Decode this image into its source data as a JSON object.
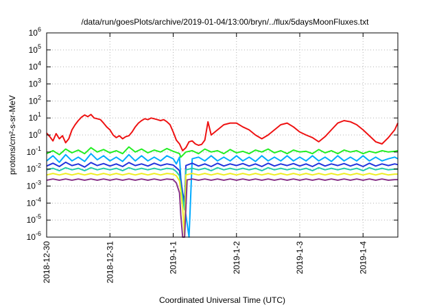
{
  "chart_data": {
    "type": "line",
    "title": "/data/run/goesPlots/archive/2019-01-04/13:00/bryn/../flux/5daysMoonFluxes.txt",
    "xlabel": "Coordinated Universal Time (UTC)",
    "ylabel": "protons/cm²-s-sr-MeV",
    "yscale": "log",
    "xlim": [
      0,
      5.55
    ],
    "ylim": [
      1e-06,
      1000000.0
    ],
    "grid": true,
    "x_ticks": [
      {
        "x": 0,
        "label": "2018-12-30"
      },
      {
        "x": 1,
        "label": "2018-12-31"
      },
      {
        "x": 2,
        "label": "2019-1-1"
      },
      {
        "x": 3,
        "label": "2019-1-2"
      },
      {
        "x": 4,
        "label": "2019-1-3"
      },
      {
        "x": 5,
        "label": "2019-1-4"
      }
    ],
    "y_ticks": [
      {
        "exp": -6,
        "label": "10",
        "sup": "-6"
      },
      {
        "exp": -5,
        "label": "10",
        "sup": "-5"
      },
      {
        "exp": -4,
        "label": "10",
        "sup": "-4"
      },
      {
        "exp": -3,
        "label": "10",
        "sup": "-3"
      },
      {
        "exp": -2,
        "label": "10",
        "sup": "-2"
      },
      {
        "exp": -1,
        "label": "10",
        "sup": "-1"
      },
      {
        "exp": 0,
        "label": "10",
        "sup": "0"
      },
      {
        "exp": 1,
        "label": "10",
        "sup": "1"
      },
      {
        "exp": 2,
        "label": "10",
        "sup": "2"
      },
      {
        "exp": 3,
        "label": "10",
        "sup": "3"
      },
      {
        "exp": 4,
        "label": "10",
        "sup": "4"
      },
      {
        "exp": 5,
        "label": "10",
        "sup": "5"
      },
      {
        "exp": 6,
        "label": "10",
        "sup": "6"
      }
    ],
    "series": [
      {
        "color": "#ee1111",
        "x": [
          0,
          0.05,
          0.1,
          0.15,
          0.2,
          0.25,
          0.3,
          0.35,
          0.4,
          0.45,
          0.5,
          0.55,
          0.6,
          0.65,
          0.7,
          0.75,
          0.8,
          0.85,
          0.9,
          0.95,
          1.0,
          1.05,
          1.1,
          1.15,
          1.2,
          1.25,
          1.3,
          1.35,
          1.4,
          1.45,
          1.5,
          1.55,
          1.6,
          1.65,
          1.7,
          1.75,
          1.8,
          1.85,
          1.9,
          1.95,
          2.0,
          2.05,
          2.1,
          2.15,
          2.2,
          2.25,
          2.3,
          2.35,
          2.4,
          2.45,
          2.5,
          2.55,
          2.6,
          2.7,
          2.8,
          2.9,
          3.0,
          3.1,
          3.2,
          3.3,
          3.4,
          3.5,
          3.6,
          3.7,
          3.8,
          3.9,
          4.0,
          4.1,
          4.2,
          4.3,
          4.4,
          4.5,
          4.6,
          4.7,
          4.8,
          4.9,
          5.0,
          5.1,
          5.2,
          5.3,
          5.4,
          5.5,
          5.55
        ],
        "y": [
          1.3,
          0.8,
          0.45,
          1.2,
          0.6,
          0.9,
          0.35,
          0.6,
          2.0,
          4.0,
          7.0,
          11.0,
          15.0,
          12.0,
          16.0,
          10.0,
          9.0,
          8.0,
          5.0,
          3.0,
          2.0,
          1.0,
          0.7,
          0.9,
          0.6,
          0.8,
          0.9,
          1.5,
          3.0,
          5.0,
          7.0,
          9.0,
          8.0,
          10.0,
          9.0,
          8.0,
          7.0,
          8.0,
          6.0,
          4.0,
          1.5,
          0.5,
          0.3,
          0.12,
          0.18,
          0.4,
          0.45,
          0.3,
          0.25,
          0.28,
          0.5,
          6.0,
          1.0,
          2.0,
          4.0,
          5.0,
          5.0,
          3.0,
          2.0,
          1.0,
          0.6,
          1.0,
          2.0,
          4.0,
          5.0,
          3.0,
          1.5,
          1.0,
          0.7,
          0.4,
          0.8,
          2.0,
          5.0,
          7.0,
          6.0,
          4.0,
          2.0,
          0.9,
          0.4,
          0.3,
          0.7,
          2.0,
          5.0
        ]
      },
      {
        "color": "#22ee22",
        "x": [
          0,
          0.1,
          0.2,
          0.3,
          0.4,
          0.5,
          0.6,
          0.7,
          0.8,
          0.9,
          1.0,
          1.1,
          1.2,
          1.3,
          1.4,
          1.5,
          1.6,
          1.7,
          1.8,
          1.9,
          2.0,
          2.1,
          2.12,
          2.2,
          2.3,
          2.4,
          2.5,
          2.6,
          2.7,
          2.8,
          2.9,
          3.0,
          3.1,
          3.2,
          3.3,
          3.4,
          3.5,
          3.6,
          3.7,
          3.8,
          3.9,
          4.0,
          4.1,
          4.2,
          4.3,
          4.4,
          4.5,
          4.6,
          4.7,
          4.8,
          4.9,
          5.0,
          5.1,
          5.2,
          5.3,
          5.4,
          5.5,
          5.55
        ],
        "y": [
          0.08,
          0.12,
          0.07,
          0.15,
          0.09,
          0.13,
          0.08,
          0.18,
          0.1,
          0.14,
          0.09,
          0.12,
          0.08,
          0.2,
          0.1,
          0.15,
          0.09,
          0.13,
          0.1,
          0.16,
          0.11,
          0.08,
          0.05,
          0.1,
          0.12,
          0.08,
          0.15,
          0.1,
          0.12,
          0.08,
          0.14,
          0.09,
          0.11,
          0.08,
          0.13,
          0.1,
          0.15,
          0.09,
          0.12,
          0.08,
          0.13,
          0.1,
          0.11,
          0.08,
          0.14,
          0.09,
          0.12,
          0.08,
          0.13,
          0.1,
          0.12,
          0.08,
          0.11,
          0.09,
          0.12,
          0.1,
          0.11,
          0.12
        ]
      },
      {
        "color": "#00aaff",
        "x": [
          0,
          0.1,
          0.2,
          0.3,
          0.4,
          0.5,
          0.6,
          0.7,
          0.8,
          0.9,
          1.0,
          1.1,
          1.2,
          1.3,
          1.4,
          1.5,
          1.6,
          1.7,
          1.8,
          1.9,
          2.0,
          2.05,
          2.1,
          2.12,
          2.15,
          2.2,
          2.25,
          2.3,
          2.4,
          2.5,
          2.6,
          2.7,
          2.8,
          2.9,
          3.0,
          3.1,
          3.2,
          3.3,
          3.4,
          3.5,
          3.6,
          3.7,
          3.8,
          3.9,
          4.0,
          4.1,
          4.2,
          4.3,
          4.4,
          4.5,
          4.6,
          4.7,
          4.8,
          4.9,
          5.0,
          5.1,
          5.2,
          5.3,
          5.4,
          5.5,
          5.55
        ],
        "y": [
          0.03,
          0.06,
          0.025,
          0.07,
          0.03,
          0.05,
          0.028,
          0.08,
          0.035,
          0.06,
          0.03,
          0.05,
          0.028,
          0.07,
          0.03,
          0.06,
          0.03,
          0.05,
          0.03,
          0.06,
          0.04,
          0.02,
          0.05,
          0.003,
          0.0003,
          2e-05,
          1e-06,
          0.04,
          0.05,
          0.03,
          0.06,
          0.03,
          0.05,
          0.03,
          0.06,
          0.03,
          0.05,
          0.028,
          0.06,
          0.03,
          0.05,
          0.03,
          0.06,
          0.03,
          0.05,
          0.03,
          0.06,
          0.03,
          0.05,
          0.028,
          0.06,
          0.03,
          0.05,
          0.03,
          0.06,
          0.03,
          0.05,
          0.03,
          0.04,
          0.05,
          0.04
        ]
      },
      {
        "color": "#2233dd",
        "x": [
          0,
          0.1,
          0.2,
          0.3,
          0.4,
          0.5,
          0.6,
          0.7,
          0.8,
          0.9,
          1.0,
          1.1,
          1.2,
          1.3,
          1.4,
          1.5,
          1.6,
          1.7,
          1.8,
          1.9,
          2.0,
          2.05,
          2.1,
          2.12,
          2.15,
          2.18,
          2.2,
          2.3,
          2.4,
          2.5,
          2.6,
          2.7,
          2.8,
          2.9,
          3.0,
          3.1,
          3.2,
          3.3,
          3.4,
          3.5,
          3.6,
          3.7,
          3.8,
          3.9,
          4.0,
          4.1,
          4.2,
          4.3,
          4.4,
          4.5,
          4.6,
          4.7,
          4.8,
          4.9,
          5.0,
          5.1,
          5.2,
          5.3,
          5.4,
          5.5,
          5.55
        ],
        "y": [
          0.015,
          0.022,
          0.014,
          0.025,
          0.016,
          0.02,
          0.013,
          0.024,
          0.016,
          0.021,
          0.015,
          0.02,
          0.014,
          0.024,
          0.016,
          0.02,
          0.015,
          0.022,
          0.016,
          0.02,
          0.017,
          0.012,
          0.008,
          0.002,
          0.0004,
          0.00012,
          0.016,
          0.022,
          0.015,
          0.02,
          0.014,
          0.022,
          0.015,
          0.02,
          0.016,
          0.021,
          0.015,
          0.02,
          0.014,
          0.022,
          0.015,
          0.02,
          0.016,
          0.021,
          0.015,
          0.02,
          0.014,
          0.022,
          0.015,
          0.02,
          0.016,
          0.021,
          0.015,
          0.02,
          0.014,
          0.022,
          0.015,
          0.02,
          0.016,
          0.02,
          0.018
        ]
      },
      {
        "color": "#22ccaa",
        "x": [
          0,
          0.1,
          0.2,
          0.3,
          0.4,
          0.5,
          0.6,
          0.7,
          0.8,
          0.9,
          1.0,
          1.1,
          1.2,
          1.3,
          1.4,
          1.5,
          1.6,
          1.7,
          1.8,
          1.9,
          2.0,
          2.05,
          2.1,
          2.12,
          2.15,
          2.18,
          2.2,
          2.3,
          2.4,
          2.5,
          2.6,
          2.7,
          2.8,
          2.9,
          3.0,
          3.1,
          3.2,
          3.3,
          3.4,
          3.5,
          3.6,
          3.7,
          3.8,
          3.9,
          4.0,
          4.1,
          4.2,
          4.3,
          4.4,
          4.5,
          4.6,
          4.7,
          4.8,
          4.9,
          5.0,
          5.1,
          5.2,
          5.3,
          5.4,
          5.5,
          5.55
        ],
        "y": [
          0.009,
          0.011,
          0.008,
          0.012,
          0.009,
          0.011,
          0.008,
          0.012,
          0.009,
          0.011,
          0.009,
          0.011,
          0.008,
          0.012,
          0.009,
          0.011,
          0.009,
          0.011,
          0.009,
          0.011,
          0.01,
          0.007,
          0.004,
          0.001,
          0.0002,
          4e-05,
          0.009,
          0.011,
          0.009,
          0.011,
          0.008,
          0.012,
          0.009,
          0.011,
          0.009,
          0.011,
          0.009,
          0.011,
          0.008,
          0.012,
          0.009,
          0.011,
          0.009,
          0.011,
          0.009,
          0.011,
          0.008,
          0.012,
          0.009,
          0.011,
          0.009,
          0.011,
          0.009,
          0.011,
          0.008,
          0.012,
          0.009,
          0.011,
          0.009,
          0.01,
          0.01
        ]
      },
      {
        "color": "#eeee22",
        "x": [
          0,
          0.1,
          0.2,
          0.3,
          0.4,
          0.5,
          0.6,
          0.7,
          0.8,
          0.9,
          1.0,
          1.1,
          1.2,
          1.3,
          1.4,
          1.5,
          1.6,
          1.7,
          1.8,
          1.9,
          2.0,
          2.05,
          2.1,
          2.12,
          2.15,
          2.18,
          2.2,
          2.3,
          2.4,
          2.5,
          2.6,
          2.7,
          2.8,
          2.9,
          3.0,
          3.1,
          3.2,
          3.3,
          3.4,
          3.5,
          3.6,
          3.7,
          3.8,
          3.9,
          4.0,
          4.1,
          4.2,
          4.3,
          4.4,
          4.5,
          4.6,
          4.7,
          4.8,
          4.9,
          5.0,
          5.1,
          5.2,
          5.3,
          5.4,
          5.5,
          5.55
        ],
        "y": [
          0.0045,
          0.0055,
          0.0045,
          0.0055,
          0.0045,
          0.0055,
          0.0045,
          0.0055,
          0.0045,
          0.0055,
          0.0045,
          0.0055,
          0.0045,
          0.0055,
          0.0045,
          0.0055,
          0.0045,
          0.0055,
          0.0045,
          0.0055,
          0.005,
          0.004,
          0.002,
          0.0005,
          5e-05,
          1e-06,
          0.0045,
          0.0055,
          0.0045,
          0.0055,
          0.0045,
          0.0055,
          0.0045,
          0.0055,
          0.0045,
          0.0055,
          0.0045,
          0.0055,
          0.0045,
          0.0055,
          0.0045,
          0.0055,
          0.0045,
          0.0055,
          0.0045,
          0.0055,
          0.0045,
          0.0055,
          0.0045,
          0.0055,
          0.0045,
          0.0055,
          0.0045,
          0.0055,
          0.0045,
          0.0055,
          0.0045,
          0.0055,
          0.0045,
          0.005,
          0.005
        ]
      },
      {
        "color": "#883388",
        "x": [
          0,
          0.1,
          0.2,
          0.3,
          0.4,
          0.5,
          0.6,
          0.7,
          0.8,
          0.9,
          1.0,
          1.1,
          1.2,
          1.3,
          1.4,
          1.5,
          1.6,
          1.7,
          1.8,
          1.9,
          2.0,
          2.05,
          2.1,
          2.12,
          2.15,
          2.18,
          2.22,
          2.3,
          2.4,
          2.5,
          2.6,
          2.7,
          2.8,
          2.9,
          3.0,
          3.1,
          3.2,
          3.3,
          3.4,
          3.5,
          3.6,
          3.7,
          3.8,
          3.9,
          4.0,
          4.1,
          4.2,
          4.3,
          4.4,
          4.5,
          4.6,
          4.7,
          4.8,
          4.9,
          5.0,
          5.1,
          5.2,
          5.3,
          5.4,
          5.5,
          5.55
        ],
        "y": [
          0.0022,
          0.0026,
          0.0022,
          0.0026,
          0.0022,
          0.0026,
          0.0022,
          0.0026,
          0.0022,
          0.0026,
          0.0022,
          0.0026,
          0.0022,
          0.0026,
          0.0022,
          0.0026,
          0.0022,
          0.0026,
          0.0022,
          0.0026,
          0.0024,
          0.0015,
          0.0004,
          2e-05,
          1e-06,
          5e-07,
          0.0023,
          0.0026,
          0.0022,
          0.0026,
          0.0022,
          0.0026,
          0.0022,
          0.0026,
          0.0022,
          0.0026,
          0.0022,
          0.0026,
          0.0022,
          0.0026,
          0.0022,
          0.0026,
          0.0022,
          0.0026,
          0.0022,
          0.0026,
          0.0022,
          0.0026,
          0.0022,
          0.0026,
          0.0022,
          0.0026,
          0.0022,
          0.0026,
          0.0022,
          0.0026,
          0.0022,
          0.0026,
          0.0022,
          0.0024,
          0.0024
        ]
      }
    ]
  }
}
